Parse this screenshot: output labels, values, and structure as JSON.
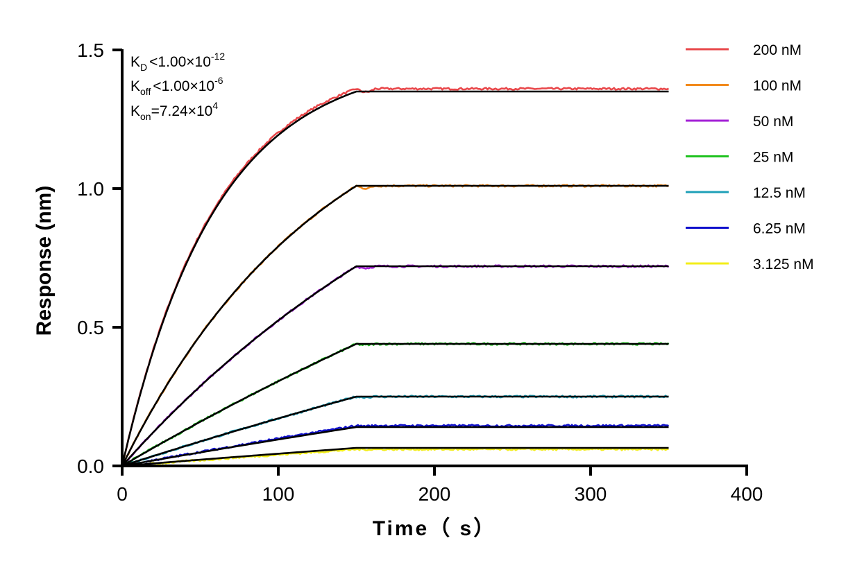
{
  "chart_data": {
    "type": "line",
    "title": "",
    "xlabel": "Time（ s）",
    "ylabel": "Response (nm)",
    "xlim": [
      0,
      400
    ],
    "ylim": [
      0,
      1.5
    ],
    "xticks": [
      "0",
      "100",
      "200",
      "300",
      "400"
    ],
    "yticks": [
      "0.0",
      "0.5",
      "1.0",
      "1.5"
    ],
    "annotations": {
      "kd": {
        "base": "K",
        "sub": "D",
        "rel": "<",
        "mantissa": "1.00×10",
        "exp": "-12"
      },
      "koff": {
        "base": "K",
        "sub": "off",
        "rel": "<",
        "mantissa": "1.00×10",
        "exp": "-6"
      },
      "kon": {
        "base": "K",
        "sub": "on",
        "rel": "=",
        "mantissa": "7.24×10",
        "exp": "4"
      }
    },
    "association_end_s": 150,
    "end_s": 350,
    "legend_position": "right",
    "series": [
      {
        "name": "200 nM",
        "color": "#e8474a",
        "plateau": 1.36,
        "fit_plateau": 1.35,
        "tau": 60
      },
      {
        "name": "100 nM",
        "color": "#f28a1c",
        "plateau": 1.01,
        "fit_plateau": 1.01,
        "tau": 130
      },
      {
        "name": "50 nM",
        "color": "#a321d6",
        "plateau": 0.72,
        "fit_plateau": 0.72,
        "tau": 260
      },
      {
        "name": "25 nM",
        "color": "#1fc21f",
        "plateau": 0.44,
        "fit_plateau": 0.44,
        "tau": 600
      },
      {
        "name": "12.5 nM",
        "color": "#1fa0b8",
        "plateau": 0.25,
        "fit_plateau": 0.25,
        "tau": 900
      },
      {
        "name": "6.25 nM",
        "color": "#1010cc",
        "plateau": 0.145,
        "fit_plateau": 0.14,
        "tau": 1200
      },
      {
        "name": "3.125 nM",
        "color": "#f3ee1a",
        "plateau": 0.06,
        "fit_plateau": 0.065,
        "tau": 1500
      }
    ]
  }
}
